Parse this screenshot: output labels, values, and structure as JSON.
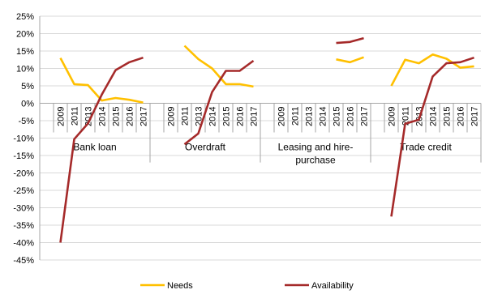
{
  "chart_data": {
    "type": "line",
    "groups": [
      {
        "name": "Bank loan",
        "years": [
          "2009",
          "2011",
          "2013",
          "2014",
          "2015",
          "2016",
          "2017"
        ]
      },
      {
        "name": "Overdraft",
        "years": [
          "2009",
          "2011",
          "2013",
          "2014",
          "2015",
          "2016",
          "2017"
        ]
      },
      {
        "name": "Leasing and hire-purchase",
        "years": [
          "2009",
          "2011",
          "2013",
          "2014",
          "2015",
          "2016",
          "2017"
        ]
      },
      {
        "name": "Trade credit",
        "years": [
          "2009",
          "2011",
          "2013",
          "2014",
          "2015",
          "2016",
          "2017"
        ]
      }
    ],
    "series": [
      {
        "name": "Needs",
        "color": "#FFC000",
        "values": [
          [
            13,
            5.5,
            5.2,
            0.8,
            1.5,
            1,
            0.2
          ],
          [
            null,
            16.5,
            12.7,
            10,
            5.5,
            5.5,
            4.8
          ],
          [
            null,
            null,
            null,
            null,
            12.6,
            11.8,
            13.2
          ],
          [
            5,
            12.5,
            11.5,
            14,
            12.8,
            10.2,
            10.6
          ]
        ]
      },
      {
        "name": "Availability",
        "color": "#A52A2A",
        "values": [
          [
            -40,
            -10.3,
            -5.8,
            2.5,
            9.5,
            11.8,
            13.1
          ],
          [
            null,
            -11.8,
            -8.7,
            3.2,
            9.3,
            9.3,
            12.2
          ],
          [
            null,
            null,
            null,
            null,
            17.3,
            17.6,
            18.7
          ],
          [
            -32.5,
            -5.9,
            -4.7,
            7.7,
            11.5,
            11.8,
            13.1
          ]
        ]
      }
    ],
    "ylim": [
      -45,
      25
    ],
    "ytick_step": 5,
    "ytick_labels": [
      "25%",
      "20%",
      "15%",
      "10%",
      "5%",
      "0%",
      "-5%",
      "-10%",
      "-15%",
      "-20%",
      "-25%",
      "-30%",
      "-35%",
      "-40%",
      "-45%"
    ],
    "grid": true,
    "legend_position": "bottom"
  }
}
